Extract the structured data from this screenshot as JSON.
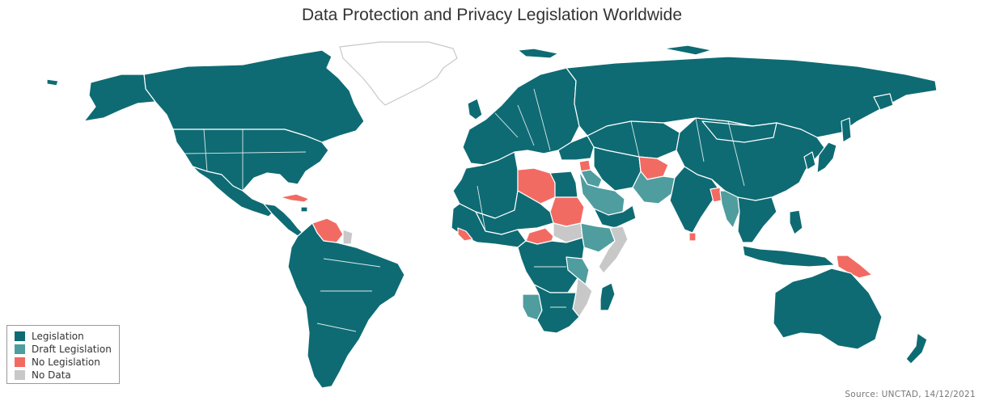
{
  "title": "Data Protection and Privacy Legislation Worldwide",
  "source": "Source: UNCTAD, 14/12/2021",
  "colors": {
    "legislation": "#0e6b73",
    "draft": "#4f9d9f",
    "none": "#f26b63",
    "nodata": "#c8c8c8",
    "border": "#ffffff",
    "background": "#ffffff"
  },
  "legend": [
    {
      "label": "Legislation",
      "color": "#0e6b73"
    },
    {
      "label": "Draft Legislation",
      "color": "#4f9d9f"
    },
    {
      "label": "No Legislation",
      "color": "#f26b63"
    },
    {
      "label": "No Data",
      "color": "#c8c8c8"
    }
  ],
  "map_data": {
    "type": "choropleth",
    "regions": [
      {
        "name": "Greenland",
        "status": "No Data"
      },
      {
        "name": "Canada",
        "status": "Legislation"
      },
      {
        "name": "United States",
        "status": "Legislation"
      },
      {
        "name": "Mexico",
        "status": "Legislation"
      },
      {
        "name": "Cuba",
        "status": "No Legislation"
      },
      {
        "name": "Venezuela",
        "status": "No Legislation"
      },
      {
        "name": "Guyana",
        "status": "No Data"
      },
      {
        "name": "South America",
        "status": "Legislation"
      },
      {
        "name": "Europe",
        "status": "Legislation"
      },
      {
        "name": "Russia",
        "status": "Legislation"
      },
      {
        "name": "Libya",
        "status": "No Legislation"
      },
      {
        "name": "Egypt",
        "status": "Legislation"
      },
      {
        "name": "Sudan",
        "status": "No Legislation"
      },
      {
        "name": "South Sudan",
        "status": "No Data"
      },
      {
        "name": "Central African Republic",
        "status": "No Legislation"
      },
      {
        "name": "Sierra Leone",
        "status": "No Legislation"
      },
      {
        "name": "Liberia",
        "status": "No Legislation"
      },
      {
        "name": "Ethiopia",
        "status": "Draft Legislation"
      },
      {
        "name": "Somalia",
        "status": "No Data"
      },
      {
        "name": "Saudi Arabia",
        "status": "Draft Legislation"
      },
      {
        "name": "Iraq",
        "status": "Draft Legislation"
      },
      {
        "name": "Syria",
        "status": "No Legislation"
      },
      {
        "name": "Afghanistan",
        "status": "No Legislation"
      },
      {
        "name": "Pakistan",
        "status": "Draft Legislation"
      },
      {
        "name": "India",
        "status": "Legislation"
      },
      {
        "name": "Bangladesh",
        "status": "No Legislation"
      },
      {
        "name": "Myanmar",
        "status": "Draft Legislation"
      },
      {
        "name": "Sri Lanka",
        "status": "No Legislation"
      },
      {
        "name": "Tanzania",
        "status": "Draft Legislation"
      },
      {
        "name": "Namibia",
        "status": "Draft Legislation"
      },
      {
        "name": "Mozambique",
        "status": "No Data"
      },
      {
        "name": "Papua New Guinea",
        "status": "No Legislation"
      },
      {
        "name": "China",
        "status": "Legislation"
      },
      {
        "name": "Australia",
        "status": "Legislation"
      },
      {
        "name": "New Zealand",
        "status": "Legislation"
      },
      {
        "name": "Madagascar",
        "status": "Legislation"
      },
      {
        "name": "Indonesia",
        "status": "Legislation"
      },
      {
        "name": "Japan",
        "status": "Legislation"
      }
    ]
  }
}
